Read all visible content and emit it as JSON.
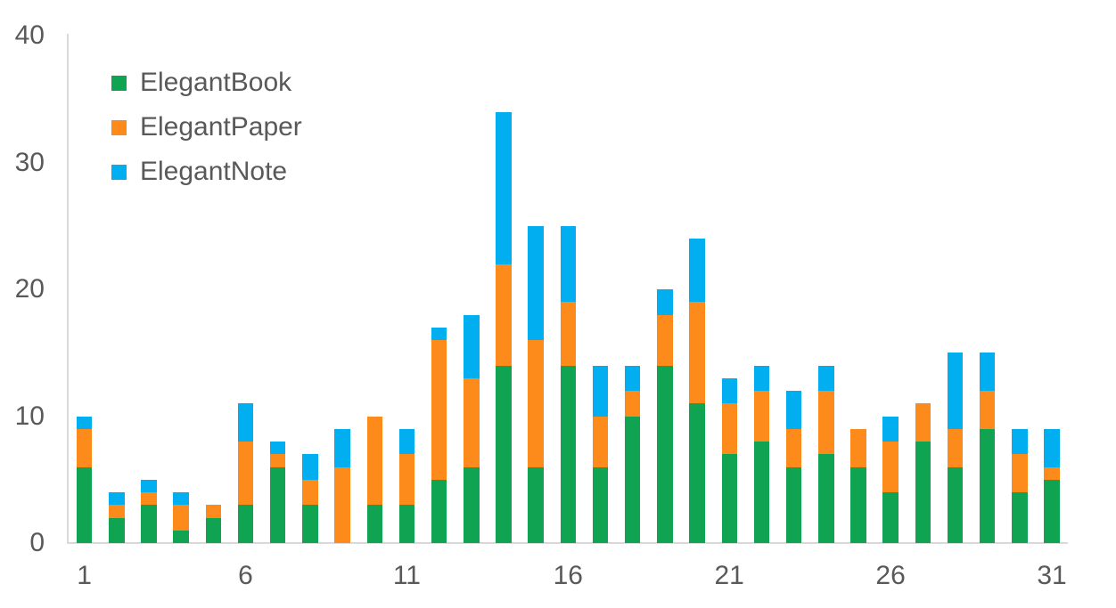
{
  "chart_data": {
    "type": "bar",
    "stacked": true,
    "title": "",
    "xlabel": "",
    "ylabel": "",
    "x": [
      1,
      2,
      3,
      4,
      5,
      6,
      7,
      8,
      9,
      10,
      11,
      12,
      13,
      14,
      15,
      16,
      17,
      18,
      19,
      20,
      21,
      22,
      23,
      24,
      25,
      26,
      27,
      28,
      29,
      30,
      31
    ],
    "xticks": [
      1,
      6,
      11,
      16,
      21,
      26,
      31
    ],
    "yticks": [
      0,
      10,
      20,
      30,
      40
    ],
    "ylim": [
      0,
      40
    ],
    "grid": false,
    "legend_position": "top-left-inside",
    "series": [
      {
        "name": "ElegantBook",
        "color": "#10a351",
        "values": [
          6,
          2,
          3,
          1,
          2,
          3,
          6,
          3,
          0,
          3,
          3,
          5,
          6,
          14,
          6,
          14,
          6,
          10,
          14,
          11,
          7,
          8,
          6,
          7,
          6,
          4,
          8,
          6,
          9,
          4,
          5
        ]
      },
      {
        "name": "ElegantPaper",
        "color": "#fc8b1c",
        "values": [
          3,
          1,
          1,
          2,
          1,
          5,
          1,
          2,
          6,
          7,
          4,
          11,
          7,
          8,
          10,
          5,
          4,
          2,
          4,
          8,
          4,
          4,
          3,
          5,
          3,
          4,
          3,
          3,
          3,
          3,
          1
        ]
      },
      {
        "name": "ElegantNote",
        "color": "#01aef0",
        "values": [
          1,
          1,
          1,
          1,
          0,
          3,
          1,
          2,
          3,
          0,
          2,
          1,
          5,
          12,
          9,
          6,
          4,
          2,
          2,
          5,
          2,
          2,
          3,
          2,
          0,
          2,
          0,
          6,
          3,
          2,
          3
        ]
      }
    ],
    "totals": [
      10,
      4,
      5,
      4,
      3,
      11,
      8,
      7,
      9,
      10,
      9,
      17,
      18,
      34,
      25,
      25,
      14,
      14,
      20,
      24,
      13,
      14,
      12,
      14,
      9,
      10,
      11,
      15,
      15,
      9,
      9
    ]
  },
  "colors": {
    "axis_line": "#d9d9d9",
    "tick_text": "#595959",
    "background": "#ffffff"
  }
}
